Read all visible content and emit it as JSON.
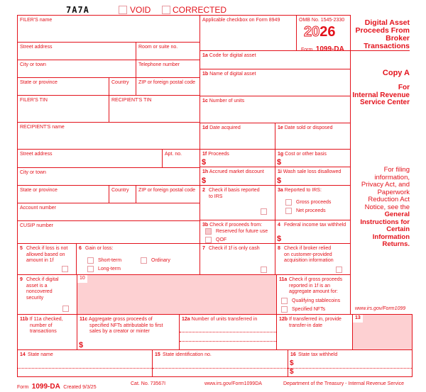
{
  "header": {
    "code": "7A7A",
    "void_label": "VOID",
    "corrected_label": "CORRECTED"
  },
  "filer": {
    "name": "FILER'S name",
    "street": "Street address",
    "room": "Room or suite no.",
    "city": "City or town",
    "phone": "Telephone number",
    "state": "State or province",
    "country": "Country",
    "zip": "ZIP or foreign postal code",
    "tin": "FILER'S TIN"
  },
  "recipient": {
    "tin": "RECIPIENT'S TIN",
    "name": "RECIPIENT'S name",
    "street": "Street address",
    "apt": "Apt. no.",
    "city": "City or town",
    "state": "State or province",
    "country": "Country",
    "zip": "ZIP or foreign postal code",
    "account": "Account number",
    "cusip": "CUSIP number"
  },
  "boxes": {
    "applicable": "Applicable checkbox on Form 8949",
    "omb": "OMB No. 1545-2330",
    "year_outline": "20",
    "year_solid": "26",
    "form_word": "Form",
    "form_name": "1099-DA",
    "b1a_num": "1a",
    "b1a": "Code for digital asset",
    "b1b_num": "1b",
    "b1b": "Name of digital asset",
    "b1c_num": "1c",
    "b1c": "Number of units",
    "b1d_num": "1d",
    "b1d": "Date acquired",
    "b1e_num": "1e",
    "b1e": "Date sold or disposed",
    "b1f_num": "1f",
    "b1f": "Proceeds",
    "b1g_num": "1g",
    "b1g": "Cost or other basis",
    "b1h_num": "1h",
    "b1h": "Accrued market discount",
    "b1i_num": "1i",
    "b1i": "Wash sale loss disallowed",
    "b2_num": "2",
    "b2_l1": "Check if basis reported",
    "b2_l2": "to IRS",
    "b3a_num": "3a",
    "b3a": "Reported to IRS:",
    "b3a_opt1": "Gross proceeds",
    "b3a_opt2": "Net proceeds",
    "b3b_num": "3b",
    "b3b": "Check if proceeds from:",
    "b3b_opt1": "Reserved for future use",
    "b3b_opt2": "QOF",
    "b4_num": "4",
    "b4": "Federal income tax withheld",
    "b5_num": "5",
    "b5_l1": "Check if loss is not",
    "b5_l2": "allowed based on",
    "b5_l3": "amount in 1f",
    "b6_num": "6",
    "b6": "Gain or loss:",
    "b6_opt1": "Short-term",
    "b6_opt2": "Ordinary",
    "b6_opt3": "Long-term",
    "b7_num": "7",
    "b7": "Check if 1f is only cash",
    "b8_num": "8",
    "b8_l1": "Check if broker relied",
    "b8_l2": "on customer-provided",
    "b8_l3": "acquisition information",
    "b9_num": "9",
    "b9_l1": "Check if digital",
    "b9_l2": "asset is a",
    "b9_l3": "noncovered",
    "b9_l4": "security",
    "b10_num": "10",
    "b11a_num": "11a",
    "b11a_l1": "Check if gross proceeds",
    "b11a_l2": "reported in 1f is an",
    "b11a_l3": "aggregate amount for:",
    "b11a_opt1": "Qualifying stablecoins",
    "b11a_opt2": "Specified NFTs",
    "b11b_num": "11b",
    "b11b_l1": "If 11a checked,",
    "b11b_l2": "number of",
    "b11b_l3": "transactions",
    "b11c_num": "11c",
    "b11c_l1": "Aggregate gross proceeds of",
    "b11c_l2": "specified NFTs attributable to first",
    "b11c_l3": "sales by a creator or minter",
    "b12a_num": "12a",
    "b12a": "Number of units transferred in",
    "b12b_num": "12b",
    "b12b_l1": "If transferred in, provide",
    "b12b_l2": "transfer-in date",
    "b13_num": "13",
    "b14_num": "14",
    "b14": "State name",
    "b15_num": "15",
    "b15": "State identification no.",
    "b16_num": "16",
    "b16": "State tax withheld",
    "dollar": "$"
  },
  "right": {
    "title": [
      "Digital Asset",
      "Proceeds From",
      "Broker",
      "Transactions"
    ],
    "copy": "Copy A",
    "for": [
      "For",
      "Internal Revenue",
      "Service Center"
    ],
    "info": [
      "For filing",
      "information,",
      "Privacy Act, and",
      "Paperwork",
      "Reduction Act",
      "Notice, see the"
    ],
    "info_bold": [
      "General",
      "Instructions for",
      "Certain",
      "Information",
      "Returns."
    ],
    "url": "www.irs.gov/Form1099"
  },
  "footer": {
    "form_word": "Form",
    "form_name": "1099-DA",
    "created": "Created 9/3/25",
    "cat": "Cat. No. 73567I",
    "url": "www.irs.gov/Form1099DA",
    "dept": "Department of the Treasury - Internal Revenue Service"
  },
  "colors": {
    "ink": "#e3121b",
    "shade": "#fdd0d2"
  }
}
